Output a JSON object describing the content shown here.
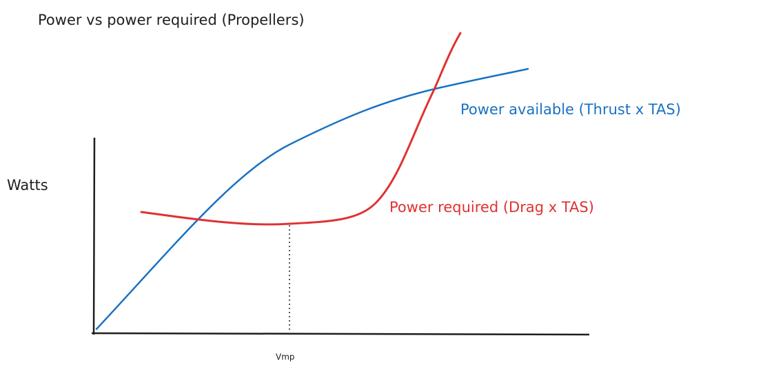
{
  "title": "Power vs power required (Propellers)",
  "axes": {
    "y_label": "Watts",
    "x_marker": "Vmp"
  },
  "curves": [
    {
      "label": "Power available (Thrust x TAS)",
      "color": "#1971c2"
    },
    {
      "label": "Power required (Drag x TAS)",
      "color": "#e03131"
    }
  ]
}
